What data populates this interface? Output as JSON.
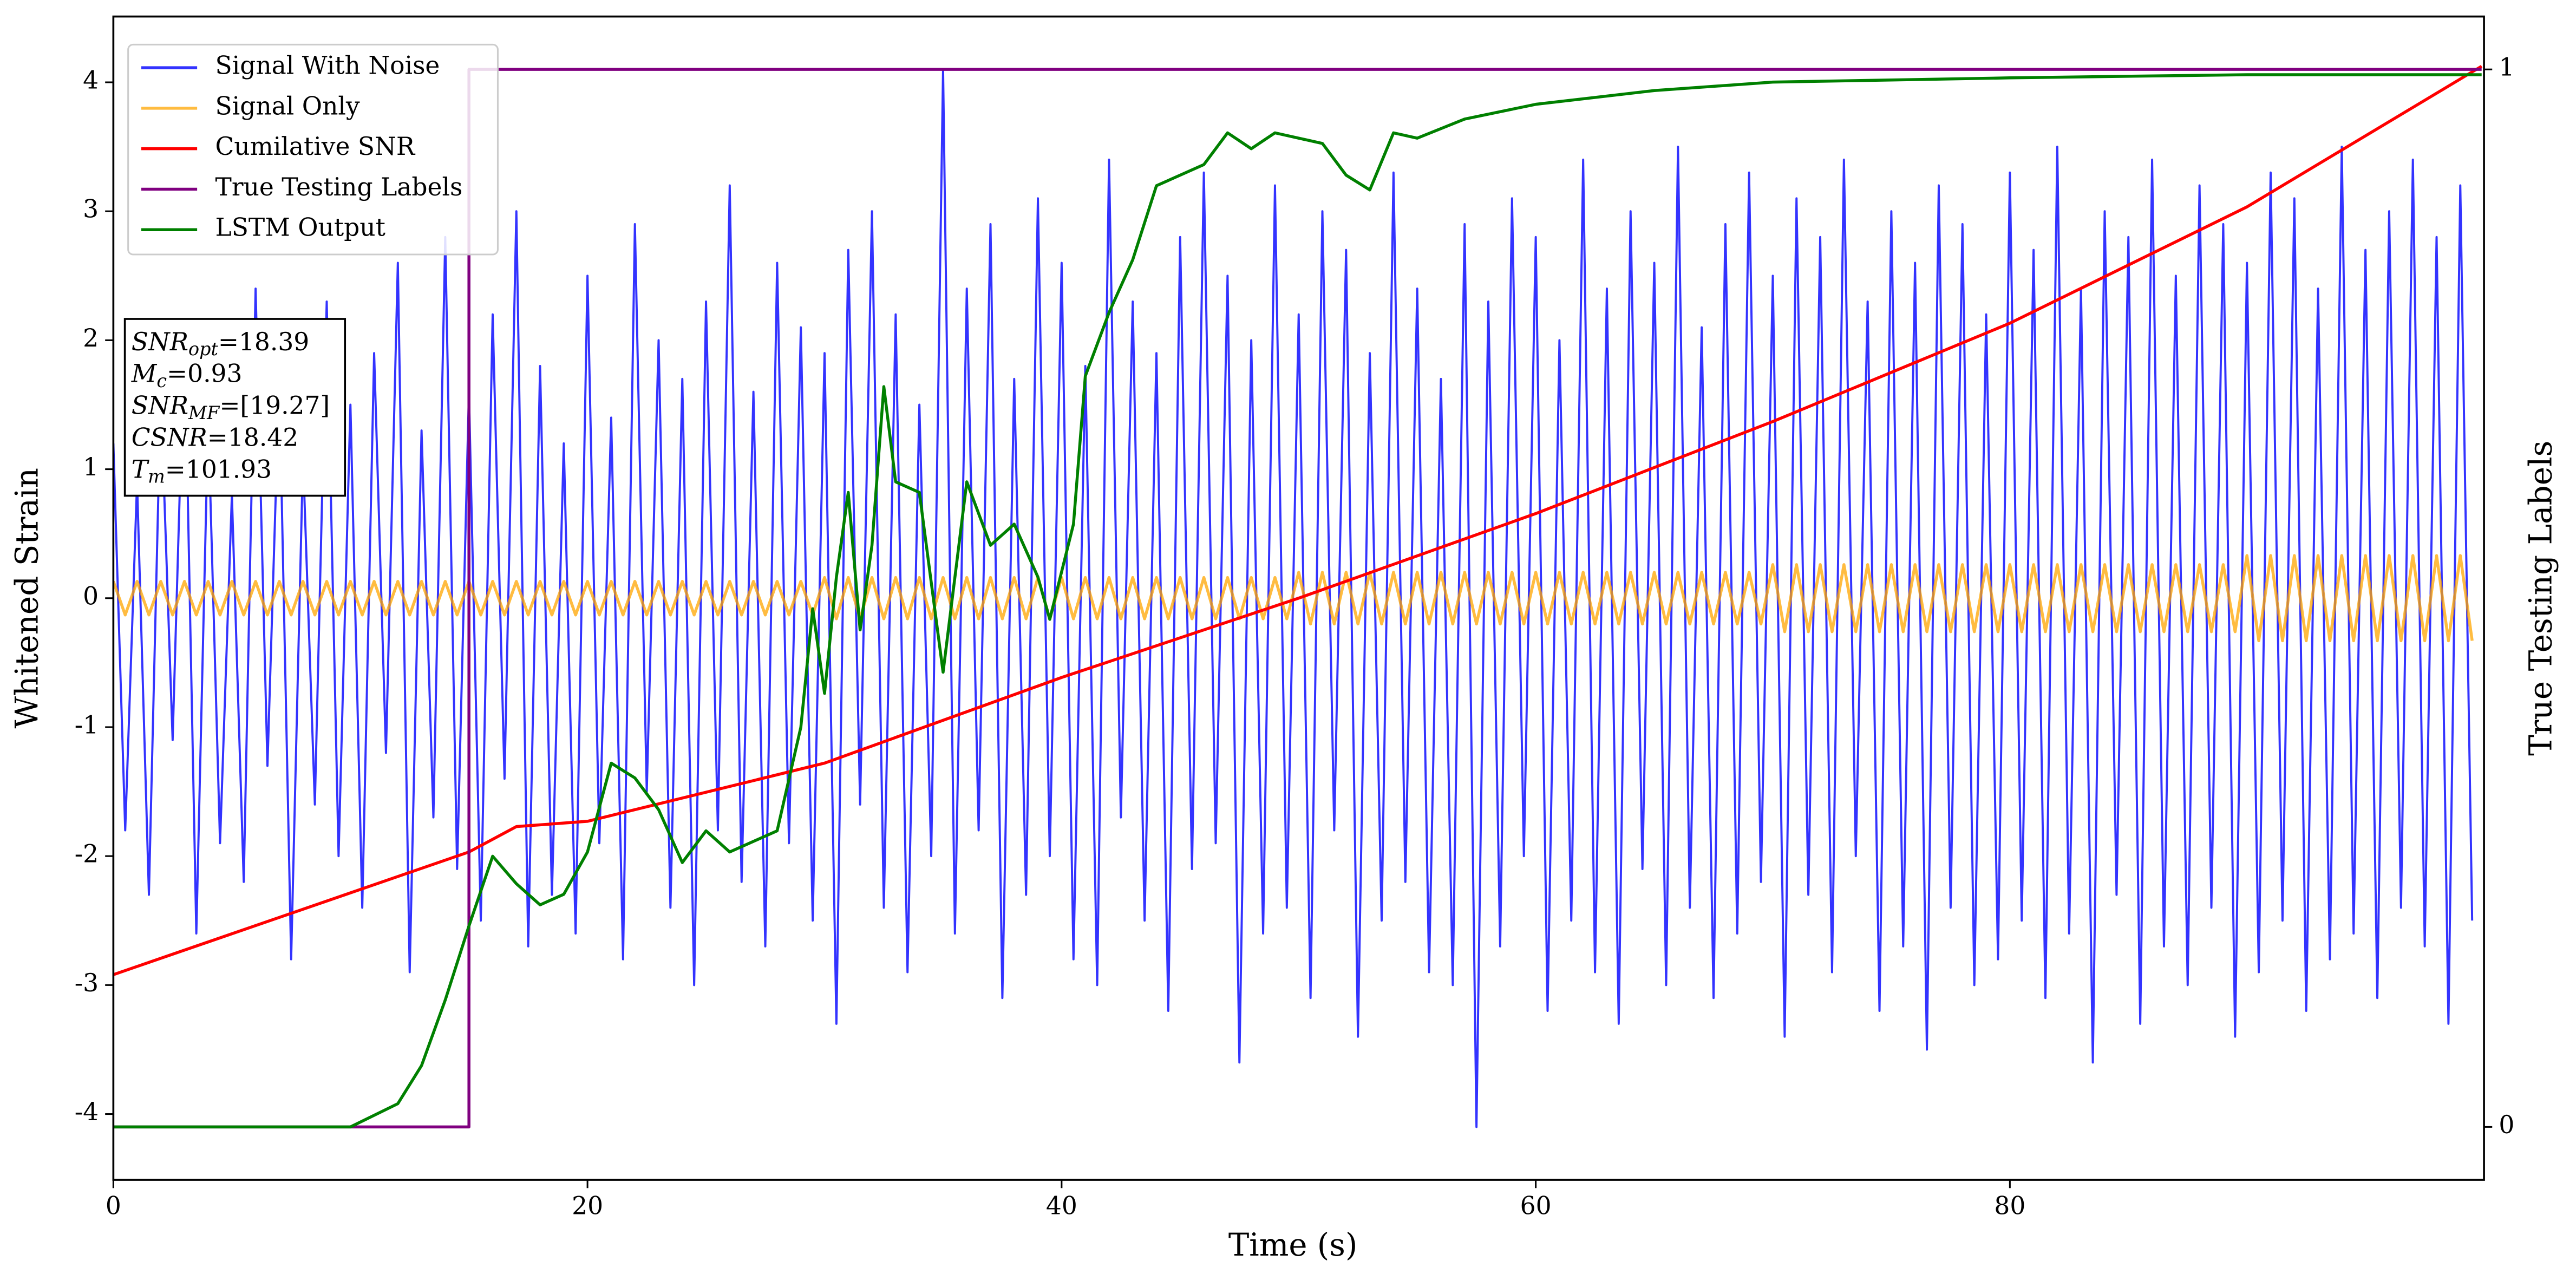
{
  "chart_data": {
    "type": "line",
    "xlabel": "Time (s)",
    "ylabel": "Whitened Strain",
    "y2label": "True Testing Labels",
    "xlim": [
      0,
      100
    ],
    "ylim": [
      -4.51,
      4.51
    ],
    "y2lim": [
      -0.05,
      1.05
    ],
    "xticks": [
      0,
      20,
      40,
      60,
      80
    ],
    "yticks": [
      -4,
      -3,
      -2,
      -1,
      0,
      1,
      2,
      3,
      4
    ],
    "y2ticks": [
      0,
      1
    ],
    "legend": "upper left",
    "grid": false,
    "x": [
      0,
      0.5,
      1,
      1.5,
      2,
      2.5,
      3,
      3.5,
      4,
      4.5,
      5,
      5.5,
      6,
      6.5,
      7,
      7.5,
      8,
      8.5,
      9,
      9.5,
      10,
      10.5,
      11,
      11.5,
      12,
      12.5,
      13,
      13.5,
      14,
      14.5,
      15,
      15.5,
      16,
      16.5,
      17,
      17.5,
      18,
      18.5,
      19,
      19.5,
      20,
      20.5,
      21,
      21.5,
      22,
      22.5,
      23,
      23.5,
      24,
      24.5,
      25,
      25.5,
      26,
      26.5,
      27,
      27.5,
      28,
      28.5,
      29,
      29.5,
      30,
      30.5,
      31,
      31.5,
      32,
      32.5,
      33,
      33.5,
      34,
      34.5,
      35,
      35.5,
      36,
      36.5,
      37,
      37.5,
      38,
      38.5,
      39,
      39.5,
      40,
      40.5,
      41,
      41.5,
      42,
      42.5,
      43,
      43.5,
      44,
      44.5,
      45,
      45.5,
      46,
      46.5,
      47,
      47.5,
      48,
      48.5,
      49,
      49.5,
      50,
      50.5,
      51,
      51.5,
      52,
      52.5,
      53,
      53.5,
      54,
      54.5,
      55,
      55.5,
      56,
      56.5,
      57,
      57.5,
      58,
      58.5,
      59,
      59.5,
      60,
      60.5,
      61,
      61.5,
      62,
      62.5,
      63,
      63.5,
      64,
      64.5,
      65,
      65.5,
      66,
      66.5,
      67,
      67.5,
      68,
      68.5,
      69,
      69.5,
      70,
      70.5,
      71,
      71.5,
      72,
      72.5,
      73,
      73.5,
      74,
      74.5,
      75,
      75.5,
      76,
      76.5,
      77,
      77.5,
      78,
      78.5,
      79,
      79.5,
      80,
      80.5,
      81,
      81.5,
      82,
      82.5,
      83,
      83.5,
      84,
      84.5,
      85,
      85.5,
      86,
      86.5,
      87,
      87.5,
      88,
      88.5,
      89,
      89.5,
      90,
      90.5,
      91,
      91.5,
      92,
      92.5,
      93,
      93.5,
      94,
      94.5,
      95,
      95.5,
      96,
      96.5,
      97,
      97.5,
      98,
      98.5,
      99,
      99.5
    ],
    "series": [
      {
        "name": "Signal With Noise",
        "color": "#3333ff",
        "axis": "y",
        "values": [
          1.2,
          -1.8,
          0.9,
          -2.3,
          1.6,
          -1.1,
          2.1,
          -2.6,
          1.4,
          -1.9,
          0.8,
          -2.2,
          2.4,
          -1.3,
          1.7,
          -2.8,
          1.1,
          -1.6,
          2.3,
          -2.0,
          1.5,
          -2.4,
          1.9,
          -1.2,
          2.6,
          -2.9,
          1.3,
          -1.7,
          2.8,
          -2.1,
          1.6,
          -2.5,
          2.2,
          -1.4,
          3.0,
          -2.7,
          1.8,
          -2.3,
          1.2,
          -2.6,
          2.5,
          -1.9,
          1.4,
          -2.8,
          2.9,
          -1.5,
          2.0,
          -2.4,
          1.7,
          -3.0,
          2.3,
          -1.8,
          3.2,
          -2.2,
          1.6,
          -2.7,
          2.6,
          -1.9,
          2.1,
          -2.5,
          1.9,
          -3.3,
          2.7,
          -1.6,
          3.0,
          -2.4,
          2.2,
          -2.9,
          1.5,
          -2.0,
          4.1,
          -2.6,
          2.4,
          -1.8,
          2.9,
          -3.1,
          1.7,
          -2.3,
          3.1,
          -2.0,
          2.6,
          -2.8,
          1.8,
          -3.0,
          3.4,
          -1.7,
          2.3,
          -2.5,
          1.9,
          -3.2,
          2.8,
          -2.1,
          3.3,
          -1.9,
          2.5,
          -3.6,
          2.0,
          -2.6,
          3.2,
          -2.4,
          2.2,
          -3.1,
          3.0,
          -1.8,
          2.7,
          -3.4,
          1.9,
          -2.5,
          3.3,
          -2.2,
          2.4,
          -2.9,
          1.7,
          -3.0,
          2.9,
          -4.1,
          2.3,
          -2.7,
          3.1,
          -2.0,
          2.8,
          -3.2,
          2.0,
          -2.5,
          3.4,
          -2.9,
          2.4,
          -3.3,
          3.0,
          -2.1,
          2.6,
          -3.0,
          3.5,
          -2.4,
          2.1,
          -3.1,
          2.9,
          -2.6,
          3.3,
          -2.2,
          2.5,
          -3.4,
          3.1,
          -2.3,
          2.8,
          -2.9,
          3.4,
          -2.0,
          2.3,
          -3.2,
          3.0,
          -2.7,
          2.6,
          -3.5,
          3.2,
          -2.4,
          2.9,
          -3.0,
          2.2,
          -2.8,
          3.3,
          -2.5,
          2.7,
          -3.1,
          3.5,
          -2.6,
          2.4,
          -3.6,
          3.0,
          -2.3,
          2.8,
          -3.3,
          3.4,
          -2.7,
          2.5,
          -3.0,
          3.2,
          -2.4,
          2.9,
          -3.4,
          2.6,
          -2.9,
          3.3,
          -2.5,
          3.1,
          -3.2,
          2.4,
          -2.8,
          3.5,
          -2.6,
          2.7,
          -3.1,
          3.0,
          -2.4,
          3.4,
          -2.7,
          2.8,
          -3.3,
          3.2,
          -2.5
        ]
      },
      {
        "name": "Signal Only",
        "color": "#ffa500",
        "axis": "y",
        "values": [
          0.13,
          -0.13,
          0.13,
          -0.13,
          0.13,
          -0.13,
          0.13,
          -0.13,
          0.13,
          -0.13,
          0.13,
          -0.13,
          0.13,
          -0.13,
          0.13,
          -0.13,
          0.13,
          -0.13,
          0.13,
          -0.13,
          0.13,
          -0.13,
          0.13,
          -0.13,
          0.13,
          -0.13,
          0.13,
          -0.13,
          0.13,
          -0.13,
          0.13,
          -0.13,
          0.13,
          -0.13,
          0.13,
          -0.13,
          0.13,
          -0.13,
          0.13,
          -0.13,
          0.13,
          -0.13,
          0.13,
          -0.13,
          0.13,
          -0.13,
          0.13,
          -0.13,
          0.13,
          -0.13,
          0.13,
          -0.13,
          0.13,
          -0.13,
          0.13,
          -0.13,
          0.13,
          -0.13,
          0.13,
          -0.13,
          0.16,
          -0.16,
          0.16,
          -0.16,
          0.16,
          -0.16,
          0.16,
          -0.16,
          0.16,
          -0.16,
          0.16,
          -0.16,
          0.16,
          -0.16,
          0.16,
          -0.16,
          0.16,
          -0.16,
          0.16,
          -0.16,
          0.16,
          -0.16,
          0.16,
          -0.16,
          0.16,
          -0.16,
          0.16,
          -0.16,
          0.16,
          -0.16,
          0.16,
          -0.16,
          0.16,
          -0.16,
          0.16,
          -0.16,
          0.16,
          -0.16,
          0.16,
          -0.16,
          0.2,
          -0.2,
          0.2,
          -0.2,
          0.2,
          -0.2,
          0.2,
          -0.2,
          0.2,
          -0.2,
          0.2,
          -0.2,
          0.2,
          -0.2,
          0.2,
          -0.2,
          0.2,
          -0.2,
          0.2,
          -0.2,
          0.2,
          -0.2,
          0.2,
          -0.2,
          0.2,
          -0.2,
          0.2,
          -0.2,
          0.2,
          -0.2,
          0.2,
          -0.2,
          0.2,
          -0.2,
          0.2,
          -0.2,
          0.2,
          -0.2,
          0.2,
          -0.2,
          0.26,
          -0.26,
          0.26,
          -0.26,
          0.26,
          -0.26,
          0.26,
          -0.26,
          0.26,
          -0.26,
          0.26,
          -0.26,
          0.26,
          -0.26,
          0.26,
          -0.26,
          0.26,
          -0.26,
          0.26,
          -0.26,
          0.26,
          -0.26,
          0.26,
          -0.26,
          0.26,
          -0.26,
          0.26,
          -0.26,
          0.26,
          -0.26,
          0.26,
          -0.26,
          0.26,
          -0.26,
          0.26,
          -0.26,
          0.26,
          -0.26,
          0.26,
          -0.26,
          0.33,
          -0.33,
          0.33,
          -0.33,
          0.33,
          -0.33,
          0.33,
          -0.33,
          0.33,
          -0.33,
          0.33,
          -0.33,
          0.33,
          -0.33,
          0.33,
          -0.33,
          0.33,
          -0.33,
          0.33,
          -0.33
        ]
      },
      {
        "name": "Cumilative SNR",
        "color": "#ff0000",
        "axis": "y2",
        "x": [
          0,
          15,
          17,
          20,
          30,
          40,
          50,
          60,
          70,
          80,
          90,
          99.9
        ],
        "values": [
          0.144,
          0.26,
          0.284,
          0.289,
          0.344,
          0.425,
          0.5,
          0.58,
          0.667,
          0.76,
          0.87,
          1.003
        ]
      },
      {
        "name": "True Testing Labels",
        "color": "#800080",
        "axis": "y2",
        "x": [
          0,
          15,
          15,
          99.9
        ],
        "values": [
          0,
          0,
          1,
          1
        ]
      },
      {
        "name": "LSTM Output",
        "color": "#008000",
        "axis": "y2",
        "x": [
          0,
          10,
          12,
          13,
          14,
          15,
          16,
          17,
          18,
          19,
          20,
          21,
          22,
          23,
          24,
          25,
          26,
          27,
          28,
          29,
          29.5,
          30,
          30.5,
          31,
          31.5,
          32,
          32.5,
          33,
          34,
          35,
          36,
          37,
          38,
          39,
          39.5,
          40.5,
          41,
          42,
          43,
          44,
          45,
          46,
          47,
          48,
          49,
          50,
          51,
          52,
          53,
          54,
          55,
          57,
          60,
          65,
          70,
          75,
          80,
          90,
          99.9
        ],
        "values": [
          0,
          0,
          0.022,
          0.058,
          0.12,
          0.19,
          0.256,
          0.23,
          0.21,
          0.22,
          0.26,
          0.344,
          0.33,
          0.3,
          0.25,
          0.28,
          0.26,
          0.27,
          0.28,
          0.378,
          0.49,
          0.41,
          0.52,
          0.6,
          0.47,
          0.55,
          0.7,
          0.61,
          0.6,
          0.43,
          0.61,
          0.55,
          0.57,
          0.52,
          0.48,
          0.57,
          0.71,
          0.77,
          0.82,
          0.89,
          0.9,
          0.91,
          0.94,
          0.925,
          0.94,
          0.935,
          0.93,
          0.9,
          0.886,
          0.94,
          0.935,
          0.953,
          0.967,
          0.98,
          0.988,
          0.99,
          0.992,
          0.995,
          0.995
        ]
      }
    ],
    "annotations": [
      {
        "var": "SNR",
        "sub": "opt",
        "text": "=18.39"
      },
      {
        "var": "M",
        "sub": "c",
        "text": "=0.93"
      },
      {
        "var": "SNR",
        "sub": "MF",
        "text": "=[19.27]"
      },
      {
        "var": "CSNR",
        "text": "=18.42"
      },
      {
        "var": "T",
        "sub": "m",
        "text": "=101.93"
      }
    ]
  }
}
